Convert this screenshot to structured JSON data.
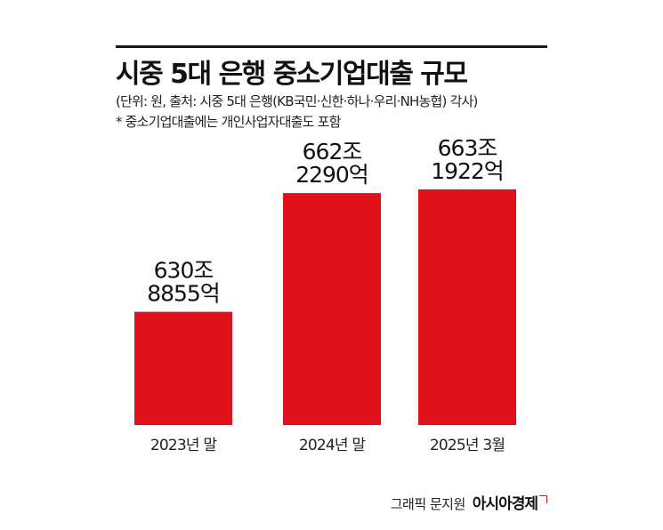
{
  "header": {
    "title": "시중 5대 은행 중소기업대출 규모",
    "subtitle": "(단위: 원, 출처: 시중 5대 은행(KB국민·신한·하나·우리·NH농협) 각사)",
    "note": "* 중소기업대출에는 개인사업자대출도 포함"
  },
  "chart_data": {
    "type": "bar",
    "title": "시중 5대 은행 중소기업대출 규모",
    "xlabel": "",
    "ylabel": "",
    "categories": [
      "2023년 말",
      "2024년 말",
      "2025년 3월"
    ],
    "values": [
      630.8855,
      662.229,
      663.1922
    ],
    "unit": "조 원",
    "value_labels": [
      [
        "630조",
        "8855억"
      ],
      [
        "662조",
        "2290억"
      ],
      [
        "663조",
        "1922억"
      ]
    ],
    "colors": {
      "bar": "#e0111a"
    },
    "grid": false,
    "legend": "none"
  },
  "footer": {
    "credit": "그래픽 문지원",
    "brand": "아시아경제"
  }
}
